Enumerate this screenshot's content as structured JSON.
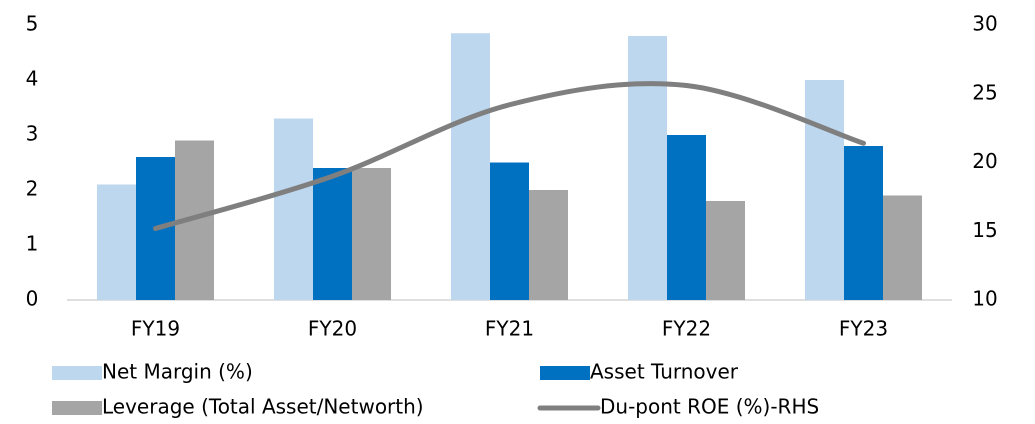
{
  "chart_data": {
    "type": "bar",
    "categories": [
      "FY19",
      "FY20",
      "FY21",
      "FY22",
      "FY23"
    ],
    "series": [
      {
        "name": "Net Margin (%)",
        "color": "#bdd7ee",
        "values": [
          2.1,
          3.3,
          4.85,
          4.8,
          4.0
        ]
      },
      {
        "name": "Asset Turnover",
        "color": "#0070c0",
        "values": [
          2.6,
          2.4,
          2.5,
          3.0,
          2.8
        ]
      },
      {
        "name": "Leverage (Total Asset/Networth)",
        "color": "#a5a5a5",
        "values": [
          2.9,
          2.4,
          2.0,
          1.8,
          1.9
        ]
      },
      {
        "name": "Du-pont ROE (%)-RHS",
        "color": "#7f7f7f",
        "type": "line",
        "axis": "y2",
        "values": [
          15.2,
          19.0,
          24.2,
          25.6,
          21.4
        ]
      }
    ],
    "ylim": [
      0,
      5
    ],
    "yticks": [
      0,
      1,
      2,
      3,
      4,
      5
    ],
    "y2lim": [
      10,
      30
    ],
    "y2ticks": [
      10,
      15,
      20,
      25,
      30
    ],
    "legend": "bottom"
  }
}
